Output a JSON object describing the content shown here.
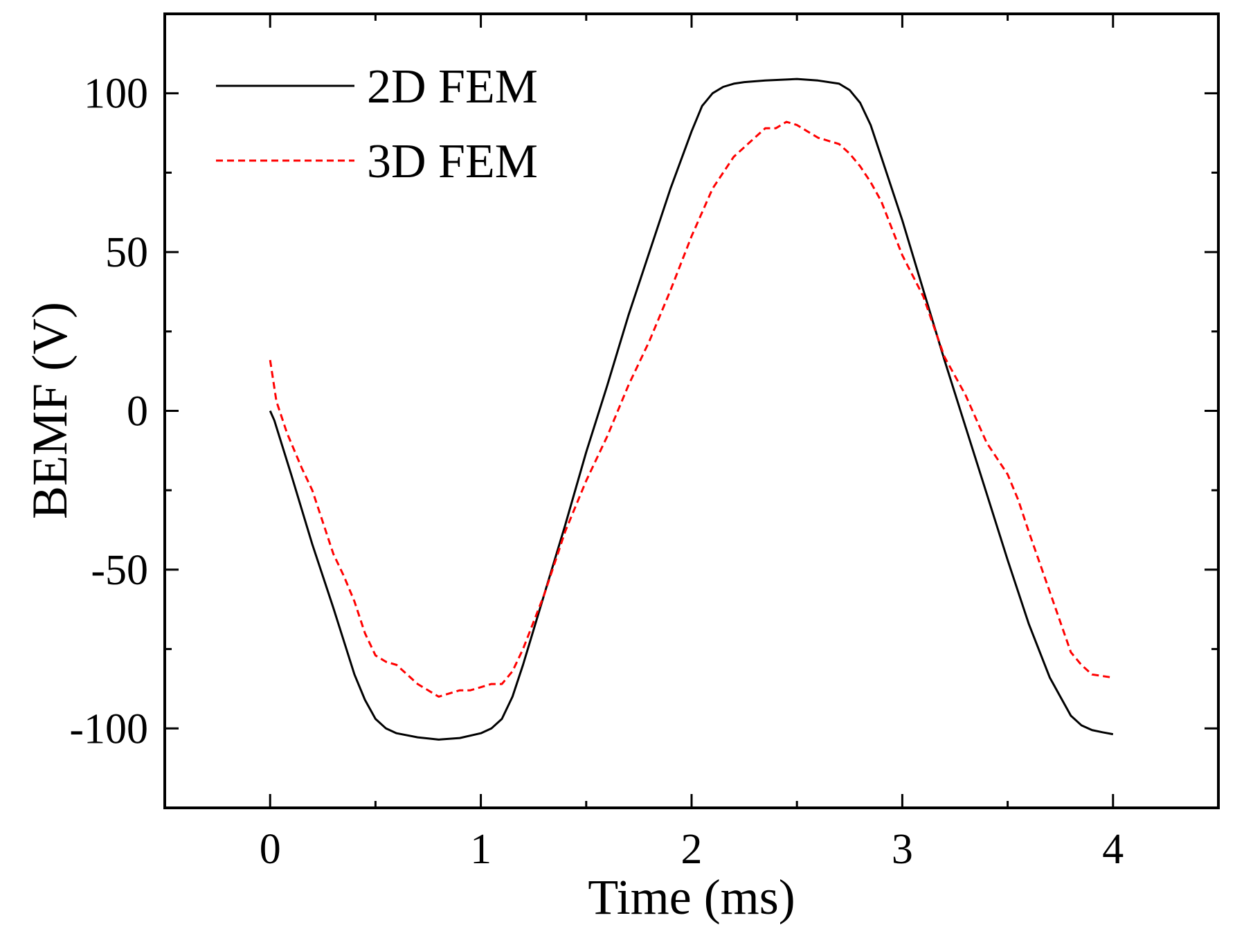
{
  "chart_data": {
    "type": "line",
    "title": "",
    "xlabel": "Time (ms)",
    "ylabel": "BEMF (V)",
    "xlim": [
      -0.5,
      4.5
    ],
    "ylim": [
      -125,
      125
    ],
    "xticks": [
      0,
      1,
      2,
      3,
      4
    ],
    "xtick_labels": [
      "0",
      "1",
      "2",
      "3",
      "4"
    ],
    "xminor": [
      -0.5,
      0.5,
      1.5,
      2.5,
      3.5,
      4.5
    ],
    "yticks": [
      -100,
      -50,
      0,
      50,
      100
    ],
    "ytick_labels": [
      "-100",
      "-50",
      "0",
      "50",
      "100"
    ],
    "yminor": [
      -75,
      -25,
      25,
      75
    ],
    "grid": false,
    "legend_position": "top-left",
    "series": [
      {
        "name": "2D FEM",
        "color": "#000000",
        "dash": "solid",
        "x": [
          0,
          0.02,
          0.1,
          0.2,
          0.3,
          0.4,
          0.45,
          0.5,
          0.55,
          0.6,
          0.7,
          0.8,
          0.9,
          1.0,
          1.05,
          1.1,
          1.15,
          1.2,
          1.3,
          1.4,
          1.5,
          1.6,
          1.7,
          1.8,
          1.9,
          2.0,
          2.05,
          2.1,
          2.15,
          2.2,
          2.25,
          2.35,
          2.5,
          2.6,
          2.7,
          2.75,
          2.8,
          2.85,
          2.9,
          3.0,
          3.1,
          3.2,
          3.3,
          3.4,
          3.5,
          3.6,
          3.7,
          3.8,
          3.85,
          3.9,
          3.95,
          4.0
        ],
        "y": [
          0,
          -3,
          -20,
          -42,
          -62,
          -83,
          -91,
          -97,
          -100,
          -101.5,
          -102.8,
          -103.5,
          -103,
          -101.5,
          -100,
          -97,
          -90,
          -80,
          -58,
          -36,
          -13,
          8,
          30,
          50,
          70,
          88,
          96,
          100,
          102,
          103,
          103.5,
          104,
          104.5,
          104,
          103,
          101,
          97,
          90,
          80,
          60,
          38,
          16,
          -5,
          -26,
          -47,
          -67,
          -84,
          -96,
          -99,
          -100.5,
          -101.2,
          -101.8
        ]
      },
      {
        "name": "3D FEM",
        "color": "#ff0000",
        "dash": "dashed",
        "x": [
          0,
          0.03,
          0.08,
          0.15,
          0.2,
          0.3,
          0.35,
          0.4,
          0.45,
          0.5,
          0.55,
          0.6,
          0.7,
          0.8,
          0.85,
          0.9,
          0.95,
          1.0,
          1.05,
          1.1,
          1.15,
          1.2,
          1.3,
          1.4,
          1.5,
          1.6,
          1.7,
          1.8,
          1.9,
          2.0,
          2.1,
          2.2,
          2.3,
          2.35,
          2.4,
          2.45,
          2.5,
          2.55,
          2.6,
          2.7,
          2.75,
          2.8,
          2.85,
          2.9,
          3.0,
          3.1,
          3.2,
          3.3,
          3.4,
          3.5,
          3.55,
          3.6,
          3.7,
          3.8,
          3.85,
          3.9,
          4.0
        ],
        "y": [
          16,
          3,
          -7,
          -18,
          -25,
          -45,
          -52,
          -60,
          -70,
          -77,
          -79,
          -80,
          -86,
          -90,
          -89,
          -88,
          -88,
          -87,
          -86,
          -86,
          -82,
          -75,
          -58,
          -38,
          -22,
          -8,
          8,
          22,
          38,
          55,
          70,
          80,
          86,
          89,
          89,
          91,
          90,
          88,
          86,
          84,
          81,
          77,
          72,
          66,
          49,
          36,
          17,
          5,
          -10,
          -20,
          -28,
          -38,
          -57,
          -76,
          -80,
          -83,
          -84
        ]
      }
    ]
  }
}
